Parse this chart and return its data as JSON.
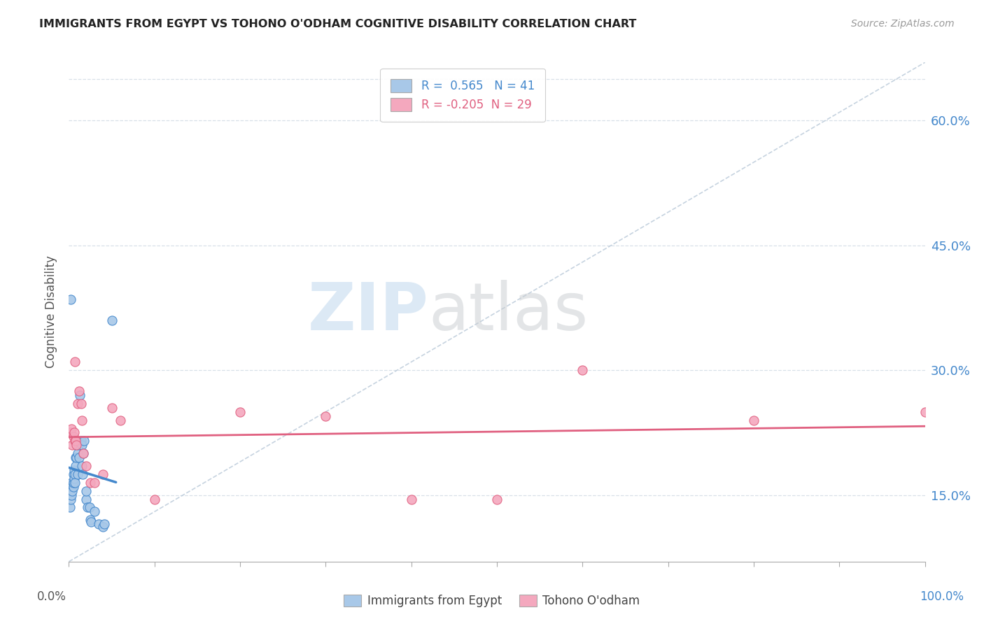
{
  "title": "IMMIGRANTS FROM EGYPT VS TOHONO O'ODHAM COGNITIVE DISABILITY CORRELATION CHART",
  "source": "Source: ZipAtlas.com",
  "ylabel": "Cognitive Disability",
  "ytick_values": [
    15.0,
    30.0,
    45.0,
    60.0
  ],
  "xlim": [
    0.0,
    100.0
  ],
  "ylim": [
    7.0,
    67.0
  ],
  "legend_label1": "Immigrants from Egypt",
  "legend_label2": "Tohono O'odham",
  "r1": 0.565,
  "n1": 41,
  "r2": -0.205,
  "n2": 29,
  "color_blue": "#a8c8e8",
  "color_pink": "#f4a8be",
  "color_blue_line": "#4488cc",
  "color_pink_line": "#e06080",
  "color_diag": "#b8c8d8",
  "blue_dots": [
    [
      0.1,
      13.5
    ],
    [
      0.2,
      15.5
    ],
    [
      0.2,
      14.5
    ],
    [
      0.3,
      16.5
    ],
    [
      0.3,
      15.0
    ],
    [
      0.4,
      16.0
    ],
    [
      0.4,
      15.5
    ],
    [
      0.5,
      17.5
    ],
    [
      0.5,
      16.0
    ],
    [
      0.5,
      16.5
    ],
    [
      0.6,
      17.0
    ],
    [
      0.6,
      18.0
    ],
    [
      0.7,
      17.5
    ],
    [
      0.7,
      16.5
    ],
    [
      0.8,
      19.5
    ],
    [
      0.8,
      18.5
    ],
    [
      0.9,
      21.0
    ],
    [
      0.9,
      19.5
    ],
    [
      1.0,
      20.0
    ],
    [
      1.0,
      17.5
    ],
    [
      1.1,
      21.0
    ],
    [
      1.2,
      19.5
    ],
    [
      1.3,
      27.0
    ],
    [
      1.4,
      21.5
    ],
    [
      1.5,
      21.0
    ],
    [
      1.5,
      18.5
    ],
    [
      1.6,
      17.5
    ],
    [
      1.7,
      20.0
    ],
    [
      1.8,
      21.5
    ],
    [
      2.0,
      14.5
    ],
    [
      2.0,
      15.5
    ],
    [
      2.2,
      13.5
    ],
    [
      2.4,
      13.5
    ],
    [
      2.5,
      12.0
    ],
    [
      2.6,
      11.8
    ],
    [
      3.0,
      13.0
    ],
    [
      3.5,
      11.5
    ],
    [
      4.0,
      11.2
    ],
    [
      4.1,
      11.5
    ],
    [
      5.0,
      36.0
    ],
    [
      0.2,
      38.5
    ]
  ],
  "pink_dots": [
    [
      0.1,
      22.5
    ],
    [
      0.2,
      22.5
    ],
    [
      0.3,
      23.0
    ],
    [
      0.4,
      21.0
    ],
    [
      0.5,
      22.0
    ],
    [
      0.6,
      22.5
    ],
    [
      0.7,
      21.5
    ],
    [
      0.7,
      31.0
    ],
    [
      0.8,
      21.5
    ],
    [
      0.9,
      21.0
    ],
    [
      1.0,
      26.0
    ],
    [
      1.2,
      27.5
    ],
    [
      1.4,
      26.0
    ],
    [
      1.5,
      24.0
    ],
    [
      1.7,
      20.0
    ],
    [
      2.0,
      18.5
    ],
    [
      2.5,
      16.5
    ],
    [
      3.0,
      16.5
    ],
    [
      4.0,
      17.5
    ],
    [
      5.0,
      25.5
    ],
    [
      6.0,
      24.0
    ],
    [
      10.0,
      14.5
    ],
    [
      20.0,
      25.0
    ],
    [
      30.0,
      24.5
    ],
    [
      40.0,
      14.5
    ],
    [
      50.0,
      14.5
    ],
    [
      60.0,
      30.0
    ],
    [
      80.0,
      24.0
    ],
    [
      100.0,
      25.0
    ]
  ],
  "watermark_zip": "ZIP",
  "watermark_atlas": "atlas",
  "background_color": "#ffffff",
  "grid_color": "#d8e0e8"
}
